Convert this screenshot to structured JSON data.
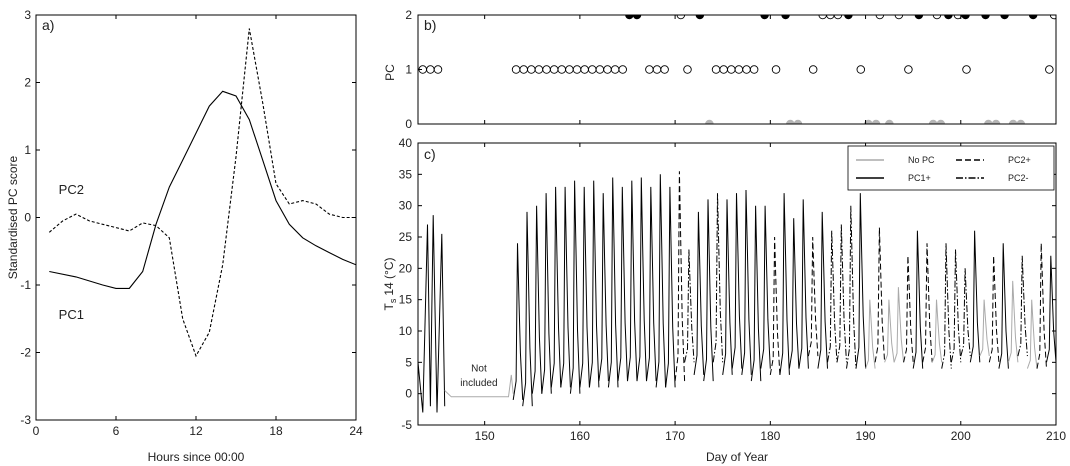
{
  "chart_data": [
    {
      "id": "a",
      "type": "line",
      "panel_label": "a)",
      "xlabel": "Hours since 00:00",
      "ylabel": "Standardised PC score",
      "xlim": [
        0,
        24
      ],
      "ylim": [
        -3,
        3
      ],
      "xticks": [
        0,
        6,
        12,
        18,
        24
      ],
      "yticks": [
        -3,
        -2,
        -1,
        0,
        1,
        2,
        3
      ],
      "series": [
        {
          "label": "PC1",
          "style": "solid",
          "x": [
            1,
            3,
            5,
            6,
            7,
            8,
            9,
            10,
            11,
            12,
            13,
            14,
            15,
            16,
            17,
            18,
            19,
            20,
            21,
            22,
            23,
            24
          ],
          "y": [
            -0.8,
            -0.88,
            -1.0,
            -1.05,
            -1.05,
            -0.8,
            -0.1,
            0.45,
            0.85,
            1.25,
            1.65,
            1.87,
            1.8,
            1.45,
            0.85,
            0.25,
            -0.1,
            -0.3,
            -0.42,
            -0.52,
            -0.62,
            -0.7
          ]
        },
        {
          "label": "PC2",
          "style": "dashed",
          "x": [
            1,
            2,
            3,
            4,
            5,
            6,
            7,
            8,
            9,
            10,
            11,
            12,
            13,
            14,
            15,
            16,
            17,
            18,
            19,
            20,
            21,
            22,
            23,
            24
          ],
          "y": [
            -0.22,
            -0.05,
            0.05,
            -0.05,
            -0.1,
            -0.15,
            -0.2,
            -0.08,
            -0.12,
            -0.3,
            -1.5,
            -2.05,
            -1.7,
            -0.7,
            0.9,
            2.8,
            1.7,
            0.5,
            0.2,
            0.25,
            0.2,
            0.05,
            0.0,
            0.0
          ]
        }
      ],
      "annotations": [
        {
          "text": "PC2",
          "x": 1.7,
          "y": 0.35
        },
        {
          "text": "PC1",
          "x": 1.7,
          "y": -1.5
        }
      ]
    },
    {
      "id": "b",
      "type": "scatter",
      "panel_label": "b)",
      "xlabel": "",
      "ylabel": "PC",
      "xlim": [
        143,
        210
      ],
      "ylim": [
        0,
        2
      ],
      "yticks": [
        0,
        1,
        2
      ],
      "series": [
        {
          "name": "open",
          "y": 1,
          "x": [
            143.5,
            144.3,
            145.1,
            153.3,
            154.1,
            154.9,
            155.7,
            156.5,
            157.3,
            158.1,
            158.9,
            159.7,
            160.5,
            161.3,
            162.1,
            162.9,
            163.7,
            164.5,
            167.3,
            168.1,
            168.9,
            171.3,
            174.3,
            175.1,
            175.9,
            176.7,
            177.5,
            178.3,
            180.6,
            184.5,
            189.5,
            194.5,
            200.6,
            209.3
          ]
        },
        {
          "name": "open",
          "y": 2,
          "x": [
            170.6,
            185.5,
            186.3,
            187.1,
            191.5,
            193.5,
            197.5,
            199.7,
            209.8
          ]
        },
        {
          "name": "filled",
          "y": 2,
          "x": [
            165.2,
            166.0,
            172.6,
            179.4,
            181.6,
            188.2,
            195.6,
            198.7,
            200.5,
            202.6,
            204.6,
            207.6
          ]
        },
        {
          "name": "grey",
          "y": 0,
          "x": [
            173.6,
            182.1,
            182.9,
            190.3,
            191.1,
            192.5,
            197.1,
            197.9,
            202.9,
            203.7,
            205.5,
            206.3
          ]
        }
      ]
    },
    {
      "id": "c",
      "type": "line",
      "panel_label": "c)",
      "xlabel": "Day of Year",
      "ylabel_main": "T",
      "ylabel_sub": "s",
      "ylabel_rest": "14 (°C)",
      "xlim": [
        143,
        210
      ],
      "ylim": [
        -5,
        40
      ],
      "xticks": [
        150,
        160,
        170,
        180,
        190,
        200,
        210
      ],
      "yticks": [
        -5,
        0,
        5,
        10,
        15,
        20,
        25,
        30,
        35,
        40
      ],
      "legend": {
        "position": "top-right",
        "entries": [
          {
            "label": "No PC",
            "style": "grey"
          },
          {
            "label": "PC1+",
            "style": "solid"
          },
          {
            "label": "PC2+",
            "style": "dashed"
          },
          {
            "label": "PC2-",
            "style": "dashdot"
          }
        ]
      },
      "annotations": [
        {
          "text": "Not",
          "x": 149.4,
          "y": 3.5
        },
        {
          "text": "included",
          "x": 149.4,
          "y": 1.2
        }
      ],
      "series": [
        {
          "style": "solid",
          "segments": [
            {
              "x": [
                143.0,
                143.5,
                144.0,
                144.3,
                144.6,
                145.0,
                145.5,
                145.8
              ],
              "y": [
                5,
                -3,
                27,
                -2,
                28.5,
                -3,
                25.5,
                -2
              ]
            }
          ]
        },
        {
          "style": "grey",
          "segments": [
            {
              "x": [
                145.8,
                146.5,
                150.0,
                152.5,
                152.8,
                153.0
              ],
              "y": [
                0.5,
                -0.5,
                -0.5,
                -0.5,
                3,
                0
              ]
            }
          ]
        }
      ],
      "days": [
        {
          "day": 153,
          "max": 24.0,
          "min": -1.0,
          "style": "solid"
        },
        {
          "day": 154,
          "max": 29.0,
          "min": -2.0,
          "style": "solid"
        },
        {
          "day": 155,
          "max": 30.0,
          "min": 0.0,
          "style": "solid"
        },
        {
          "day": 156,
          "max": 32.0,
          "min": 0.0,
          "style": "solid"
        },
        {
          "day": 157,
          "max": 33.0,
          "min": 1.0,
          "style": "solid"
        },
        {
          "day": 158,
          "max": 33.0,
          "min": 1.0,
          "style": "solid"
        },
        {
          "day": 159,
          "max": 34.0,
          "min": 0.0,
          "style": "solid"
        },
        {
          "day": 160,
          "max": 33.0,
          "min": 1.0,
          "style": "solid"
        },
        {
          "day": 161,
          "max": 34.0,
          "min": 1.0,
          "style": "solid"
        },
        {
          "day": 162,
          "max": 32.0,
          "min": 2.0,
          "style": "solid"
        },
        {
          "day": 163,
          "max": 34.5,
          "min": 1.0,
          "style": "solid"
        },
        {
          "day": 164,
          "max": 33.0,
          "min": 2.0,
          "style": "solid"
        },
        {
          "day": 165,
          "max": 34.0,
          "min": 2.0,
          "style": "solid"
        },
        {
          "day": 166,
          "max": 34.5,
          "min": 2.0,
          "style": "solid"
        },
        {
          "day": 167,
          "max": 33.0,
          "min": 2.0,
          "style": "solid"
        },
        {
          "day": 168,
          "max": 35.0,
          "min": 1.0,
          "style": "solid"
        },
        {
          "day": 169,
          "max": 33.0,
          "min": 1.0,
          "style": "solid"
        },
        {
          "day": 170,
          "max": 35.5,
          "min": 2.0,
          "style": "dashed"
        },
        {
          "day": 171,
          "max": 23.0,
          "min": 5.0,
          "style": "dashdot"
        },
        {
          "day": 172,
          "max": 29.0,
          "min": 3.0,
          "style": "solid"
        },
        {
          "day": 173,
          "max": 31.0,
          "min": 2.0,
          "style": "solid"
        },
        {
          "day": 174,
          "max": 32.0,
          "min": 5.0,
          "style": "dashdot"
        },
        {
          "day": 175,
          "max": 31.0,
          "min": 3.0,
          "style": "solid"
        },
        {
          "day": 176,
          "max": 32.0,
          "min": 4.0,
          "style": "solid"
        },
        {
          "day": 177,
          "max": 32.5,
          "min": 3.0,
          "style": "solid"
        },
        {
          "day": 178,
          "max": 30.0,
          "min": 2.0,
          "style": "solid"
        },
        {
          "day": 179,
          "max": 30.0,
          "min": 4.0,
          "style": "solid"
        },
        {
          "day": 180,
          "max": 25.0,
          "min": 3.0,
          "style": "dashed"
        },
        {
          "day": 181,
          "max": 32.0,
          "min": 3.0,
          "style": "solid"
        },
        {
          "day": 182,
          "max": 28.0,
          "min": 4.0,
          "style": "solid"
        },
        {
          "day": 183,
          "max": 31.0,
          "min": 4.0,
          "style": "solid"
        },
        {
          "day": 184,
          "max": 25.0,
          "min": 6.0,
          "style": "dashed"
        },
        {
          "day": 185,
          "max": 29.0,
          "min": 4.0,
          "style": "solid"
        },
        {
          "day": 186,
          "max": 26.0,
          "min": 5.0,
          "style": "dashdot"
        },
        {
          "day": 187,
          "max": 27.0,
          "min": 5.0,
          "style": "dashdot"
        },
        {
          "day": 188,
          "max": 30.0,
          "min": 4.0,
          "style": "dashdot"
        },
        {
          "day": 189,
          "max": 32.0,
          "min": 4.0,
          "style": "solid"
        },
        {
          "day": 190,
          "max": 15.0,
          "min": 4.0,
          "style": "grey"
        },
        {
          "day": 191,
          "max": 26.5,
          "min": 5.0,
          "style": "dashed"
        },
        {
          "day": 192,
          "max": 15.0,
          "min": 5.0,
          "style": "grey"
        },
        {
          "day": 193,
          "max": 17.0,
          "min": 5.0,
          "style": "grey"
        },
        {
          "day": 194,
          "max": 22.0,
          "min": 5.0,
          "style": "dashed"
        },
        {
          "day": 195,
          "max": 26.0,
          "min": 4.0,
          "style": "solid"
        },
        {
          "day": 196,
          "max": 24.0,
          "min": 5.0,
          "style": "dashed"
        },
        {
          "day": 197,
          "max": 15.0,
          "min": 5.0,
          "style": "grey"
        },
        {
          "day": 198,
          "max": 24.0,
          "min": 4.0,
          "style": "dashdot"
        },
        {
          "day": 199,
          "max": 23.0,
          "min": 5.0,
          "style": "dashdot"
        },
        {
          "day": 200,
          "max": 20.0,
          "min": 6.0,
          "style": "dashdot"
        },
        {
          "day": 201,
          "max": 26.0,
          "min": 5.0,
          "style": "solid"
        },
        {
          "day": 202,
          "max": 15.0,
          "min": 6.0,
          "style": "grey"
        },
        {
          "day": 203,
          "max": 22.0,
          "min": 5.0,
          "style": "dashed"
        },
        {
          "day": 204,
          "max": 24.0,
          "min": 4.0,
          "style": "solid"
        },
        {
          "day": 205,
          "max": 18.0,
          "min": 5.0,
          "style": "grey"
        },
        {
          "day": 206,
          "max": 22.0,
          "min": 6.0,
          "style": "dashdot"
        },
        {
          "day": 207,
          "max": 15.0,
          "min": 4.0,
          "style": "grey"
        },
        {
          "day": 208,
          "max": 24.0,
          "min": 4.0,
          "style": "dashed"
        },
        {
          "day": 209,
          "max": 22.0,
          "min": 5.0,
          "style": "solid"
        },
        {
          "day": 210,
          "max": 25.0,
          "min": 5.0,
          "style": "dashed"
        }
      ]
    }
  ]
}
